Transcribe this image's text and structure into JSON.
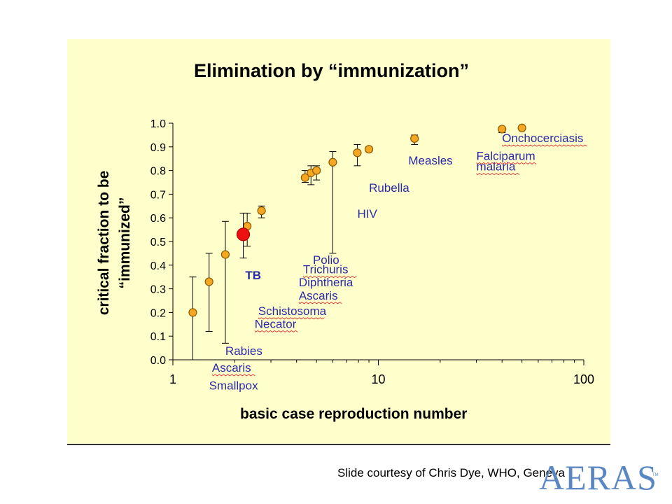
{
  "chart_data": {
    "type": "scatter",
    "title": "Elimination by “immunization”",
    "xlabel": "basic case reproduction number",
    "ylabel_lines": [
      "critical fraction to be",
      "“immunized”"
    ],
    "xscale": "log",
    "xlim": [
      1,
      100
    ],
    "ylim": [
      0,
      1
    ],
    "xticks": [
      1,
      10,
      100
    ],
    "xtick_labels": [
      "1",
      "10",
      "100"
    ],
    "yticks": [
      0,
      0.1,
      0.2,
      0.3,
      0.4,
      0.5,
      0.6,
      0.7,
      0.8,
      0.9,
      1.0
    ],
    "ytick_labels": [
      "0.0",
      "0.1",
      "0.2",
      "0.3",
      "0.4",
      "0.5",
      "0.6",
      "0.7",
      "0.8",
      "0.9",
      "1.0"
    ],
    "grid": false,
    "legend": "none",
    "points": [
      {
        "x": 1.25,
        "y": 0.2,
        "ylow": 0.0,
        "yhigh": 0.35
      },
      {
        "x": 1.5,
        "y": 0.33,
        "ylow": 0.12,
        "yhigh": 0.45
      },
      {
        "x": 1.8,
        "y": 0.445,
        "ylow": 0.07,
        "yhigh": 0.585
      },
      {
        "x": 2.3,
        "y": 0.565,
        "ylow": 0.48,
        "yhigh": 0.62
      },
      {
        "x": 2.7,
        "y": 0.63,
        "ylow": 0.6,
        "yhigh": 0.65
      },
      {
        "x": 4.4,
        "y": 0.77,
        "ylow": 0.75,
        "yhigh": 0.8
      },
      {
        "x": 4.7,
        "y": 0.79,
        "ylow": 0.74,
        "yhigh": 0.82
      },
      {
        "x": 5.0,
        "y": 0.8,
        "ylow": 0.76,
        "yhigh": 0.82
      },
      {
        "x": 6.0,
        "y": 0.835,
        "ylow": 0.45,
        "yhigh": 0.88
      },
      {
        "x": 7.9,
        "y": 0.875,
        "ylow": 0.82,
        "yhigh": 0.91
      },
      {
        "x": 9.0,
        "y": 0.89,
        "ylow": 0.88,
        "yhigh": 0.9
      },
      {
        "x": 15.0,
        "y": 0.935,
        "ylow": 0.91,
        "yhigh": 0.95
      },
      {
        "x": 40.0,
        "y": 0.975,
        "ylow": 0.96,
        "yhigh": 0.98
      },
      {
        "x": 50.0,
        "y": 0.98,
        "ylow": 0.975,
        "yhigh": 0.985
      }
    ],
    "highlight": {
      "x": 2.2,
      "y": 0.53,
      "ylow": 0.43,
      "yhigh": 0.62,
      "label": "TB"
    },
    "point_color": "#f5a623",
    "point_edge_color": "#8a5a00",
    "highlight_color": "#ee1111",
    "annotation_color": "#2a2aa8",
    "annotations": [
      {
        "text": "Rabies",
        "x": 1.8,
        "y": 0.02,
        "underline": false
      },
      {
        "text": "Ascaris",
        "x": 1.55,
        "y": -0.05,
        "underline": true
      },
      {
        "text": "Smallpox",
        "x": 1.5,
        "y": -0.125,
        "underline": false
      },
      {
        "text": "TB",
        "x": 2.25,
        "y": 0.34,
        "underline": false
      },
      {
        "text": "Schistosoma",
        "x": 2.6,
        "y": 0.19,
        "underline": true
      },
      {
        "text": "Necator",
        "x": 2.5,
        "y": 0.135,
        "underline": true
      },
      {
        "text": "Polio",
        "x": 4.8,
        "y": 0.405,
        "underline": false
      },
      {
        "text": "Trichuris",
        "x": 4.3,
        "y": 0.365,
        "underline": true
      },
      {
        "text": "Diphtheria",
        "x": 4.1,
        "y": 0.31,
        "underline": false
      },
      {
        "text": "Ascaris",
        "x": 4.1,
        "y": 0.255,
        "underline": true
      },
      {
        "text": "HIV",
        "x": 7.9,
        "y": 0.6,
        "underline": false
      },
      {
        "text": "Rubella",
        "x": 9.0,
        "y": 0.71,
        "underline": false
      },
      {
        "text": "Measles",
        "x": 14.0,
        "y": 0.825,
        "underline": false
      },
      {
        "text": "Falciparum",
        "x": 30.0,
        "y": 0.845,
        "underline": true
      },
      {
        "text": "malaria",
        "x": 30.0,
        "y": 0.8,
        "underline": true
      },
      {
        "text": "Onchocerciasis",
        "x": 40.0,
        "y": 0.92,
        "underline": true
      }
    ]
  },
  "footer": {
    "credit": "Slide courtesy of Chris Dye, WHO, Geneva",
    "logo_text": "AERAS",
    "logo_tm": "TM",
    "logo_color": "#5a86c4"
  }
}
